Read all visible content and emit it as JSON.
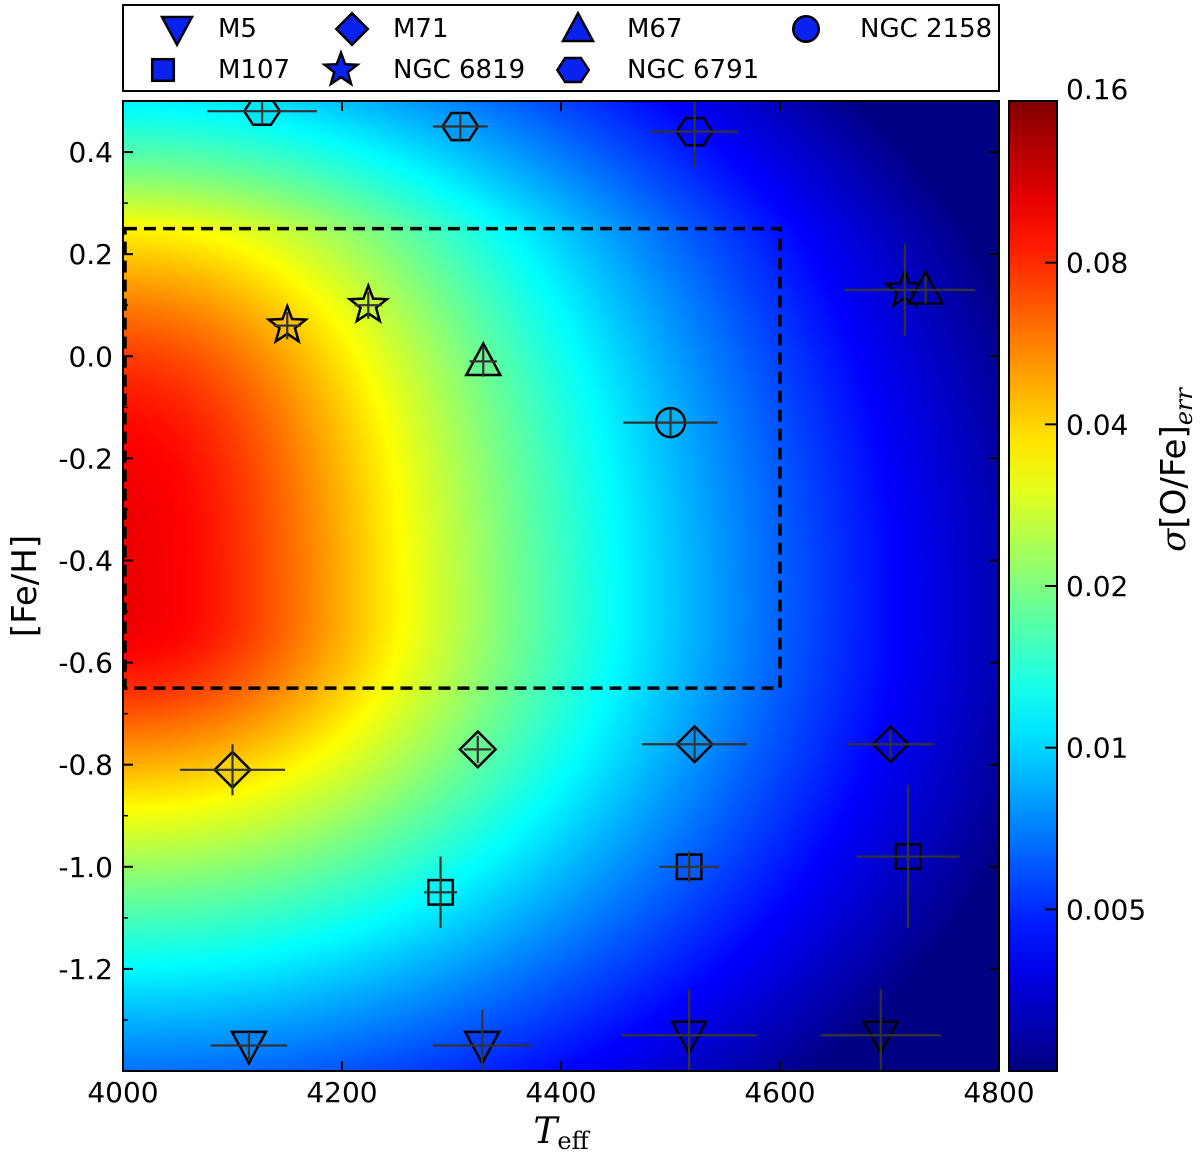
{
  "chart_data": {
    "type": "heatmap",
    "xlabel": "T",
    "xlabel_subscript": "eff",
    "ylabel": "[Fe/H]",
    "colorbar_label_prefix": "σ",
    "colorbar_label_main": "[O/Fe]",
    "colorbar_label_subscript": "err",
    "xlim": [
      4000,
      4800
    ],
    "ylim": [
      -1.4,
      0.5
    ],
    "x_ticks": [
      "4000",
      "4200",
      "4400",
      "4600",
      "4800"
    ],
    "y_ticks": [
      "0.4",
      "0.2",
      "0.0",
      "-0.2",
      "-0.4",
      "-0.6",
      "-0.8",
      "-1.0",
      "-1.2"
    ],
    "colorbar": {
      "scale": "log",
      "range": [
        0.0025,
        0.16
      ],
      "ticks": [
        "0.005",
        "0.01",
        "0.02",
        "0.04",
        "0.08",
        "0.16"
      ],
      "colormap": "jet"
    },
    "dashed_region": {
      "x": [
        4000,
        4600
      ],
      "y": [
        -0.65,
        0.25
      ]
    },
    "legend": {
      "placement": "top-outside",
      "entries": [
        {
          "label": "M5",
          "marker": "triangle-down"
        },
        {
          "label": "M71",
          "marker": "diamond"
        },
        {
          "label": "M67",
          "marker": "triangle-up"
        },
        {
          "label": "NGC 2158",
          "marker": "circle"
        },
        {
          "label": "M107",
          "marker": "square"
        },
        {
          "label": "NGC 6819",
          "marker": "star"
        },
        {
          "label": "NGC 6791",
          "marker": "hexagon"
        }
      ],
      "marker_color": "#0a22f0"
    },
    "points": [
      {
        "cluster": "NGC 6791",
        "marker": "hexagon",
        "x": 4127,
        "y": 0.48,
        "xerr": 50,
        "yerr": 0.0
      },
      {
        "cluster": "NGC 6791",
        "marker": "hexagon",
        "x": 4308,
        "y": 0.45,
        "xerr": 25,
        "yerr": 0.0
      },
      {
        "cluster": "NGC 6791",
        "marker": "hexagon",
        "x": 4522,
        "y": 0.44,
        "xerr": 40,
        "yerr": 0.07
      },
      {
        "cluster": "NGC 6819",
        "marker": "star",
        "x": 4150,
        "y": 0.06,
        "xerr": 0,
        "yerr": 0
      },
      {
        "cluster": "NGC 6819",
        "marker": "star",
        "x": 4224,
        "y": 0.1,
        "xerr": 0,
        "yerr": 0
      },
      {
        "cluster": "NGC 6819",
        "marker": "star",
        "x": 4714,
        "y": 0.13,
        "xerr": 55,
        "yerr": 0.09
      },
      {
        "cluster": "M67",
        "marker": "triangle-up",
        "x": 4329,
        "y": -0.01,
        "xerr": 0,
        "yerr": 0.03
      },
      {
        "cluster": "M67",
        "marker": "triangle-up",
        "x": 4733,
        "y": 0.13,
        "xerr": 45,
        "yerr": 0
      },
      {
        "cluster": "NGC 2158",
        "marker": "circle",
        "x": 4500,
        "y": -0.13,
        "xerr": 43,
        "yerr": 0.0
      },
      {
        "cluster": "M71",
        "marker": "diamond",
        "x": 4100,
        "y": -0.81,
        "xerr": 48,
        "yerr": 0.05
      },
      {
        "cluster": "M71",
        "marker": "diamond",
        "x": 4324,
        "y": -0.77,
        "xerr": 0,
        "yerr": 0.02
      },
      {
        "cluster": "M71",
        "marker": "diamond",
        "x": 4522,
        "y": -0.76,
        "xerr": 48,
        "yerr": 0.03
      },
      {
        "cluster": "M71",
        "marker": "diamond",
        "x": 4701,
        "y": -0.76,
        "xerr": 40,
        "yerr": 0.02
      },
      {
        "cluster": "M107",
        "marker": "square",
        "x": 4290,
        "y": -1.05,
        "xerr": 15,
        "yerr": 0.07
      },
      {
        "cluster": "M107",
        "marker": "square",
        "x": 4517,
        "y": -1.0,
        "xerr": 27,
        "yerr": 0.03
      },
      {
        "cluster": "M107",
        "marker": "square",
        "x": 4717,
        "y": -0.98,
        "xerr": 47,
        "yerr": 0.14
      },
      {
        "cluster": "M5",
        "marker": "triangle-down",
        "x": 4115,
        "y": -1.35,
        "xerr": 35,
        "yerr": 0
      },
      {
        "cluster": "M5",
        "marker": "triangle-down",
        "x": 4328,
        "y": -1.35,
        "xerr": 45,
        "yerr": 0.07
      },
      {
        "cluster": "M5",
        "marker": "triangle-down",
        "x": 4517,
        "y": -1.33,
        "xerr": 62,
        "yerr": 0.09
      },
      {
        "cluster": "M5",
        "marker": "triangle-down",
        "x": 4692,
        "y": -1.33,
        "xerr": 55,
        "yerr": 0.09
      }
    ]
  }
}
